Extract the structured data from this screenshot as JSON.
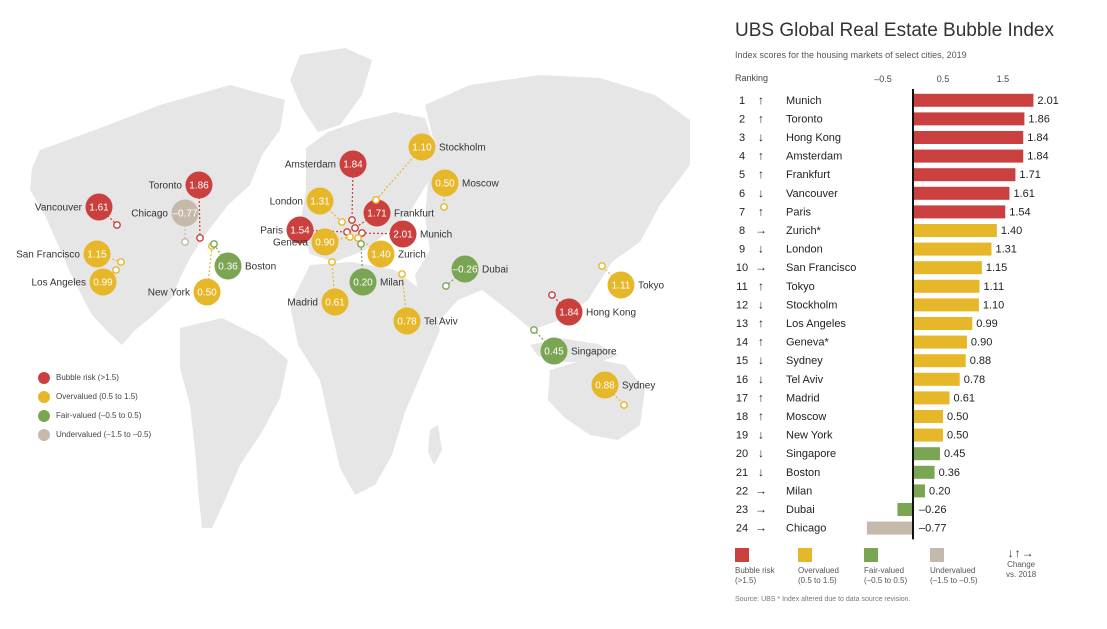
{
  "title": "UBS Global Real Estate Bubble Index",
  "subtitle": "Index scores for the housing markets of select cities, 2019",
  "ranking_label": "Ranking",
  "colors": {
    "bubble": "#c9403e",
    "over": "#e7b72a",
    "fair": "#7aa653",
    "under": "#c4b9ab",
    "land": "#e6e6e6"
  },
  "chart_data": {
    "type": "bar",
    "orientation": "horizontal",
    "xlim": [
      -1.1,
      2.05
    ],
    "x_ticks": [
      "–0.5",
      "0.5",
      "1.5"
    ],
    "x_tick_values": [
      -0.5,
      0.5,
      1.5
    ],
    "rows": [
      {
        "rank": "1",
        "arrow": "↑",
        "city": "Munich",
        "value": 2.01,
        "label": "2.01",
        "category": "bubble"
      },
      {
        "rank": "2",
        "arrow": "↑",
        "city": "Toronto",
        "value": 1.86,
        "label": "1.86",
        "category": "bubble"
      },
      {
        "rank": "3",
        "arrow": "↓",
        "city": "Hong Kong",
        "value": 1.84,
        "label": "1.84",
        "category": "bubble"
      },
      {
        "rank": "4",
        "arrow": "↑",
        "city": "Amsterdam",
        "value": 1.84,
        "label": "1.84",
        "category": "bubble"
      },
      {
        "rank": "5",
        "arrow": "↑",
        "city": "Frankfurt",
        "value": 1.71,
        "label": "1.71",
        "category": "bubble"
      },
      {
        "rank": "6",
        "arrow": "↓",
        "city": "Vancouver",
        "value": 1.61,
        "label": "1.61",
        "category": "bubble"
      },
      {
        "rank": "7",
        "arrow": "↑",
        "city": "Paris",
        "value": 1.54,
        "label": "1.54",
        "category": "bubble"
      },
      {
        "rank": "8",
        "arrow": "→",
        "city": "Zurich*",
        "value": 1.4,
        "label": "1.40",
        "category": "over"
      },
      {
        "rank": "9",
        "arrow": "↓",
        "city": "London",
        "value": 1.31,
        "label": "1.31",
        "category": "over"
      },
      {
        "rank": "10",
        "arrow": "→",
        "city": "San Francisco",
        "value": 1.15,
        "label": "1.15",
        "category": "over"
      },
      {
        "rank": "11",
        "arrow": "↑",
        "city": "Tokyo",
        "value": 1.11,
        "label": "1.11",
        "category": "over"
      },
      {
        "rank": "12",
        "arrow": "↓",
        "city": "Stockholm",
        "value": 1.1,
        "label": "1.10",
        "category": "over"
      },
      {
        "rank": "13",
        "arrow": "↑",
        "city": "Los Angeles",
        "value": 0.99,
        "label": "0.99",
        "category": "over"
      },
      {
        "rank": "14",
        "arrow": "↑",
        "city": "Geneva*",
        "value": 0.9,
        "label": "0.90",
        "category": "over"
      },
      {
        "rank": "15",
        "arrow": "↓",
        "city": "Sydney",
        "value": 0.88,
        "label": "0.88",
        "category": "over"
      },
      {
        "rank": "16",
        "arrow": "↓",
        "city": "Tel Aviv",
        "value": 0.78,
        "label": "0.78",
        "category": "over"
      },
      {
        "rank": "17",
        "arrow": "↑",
        "city": "Madrid",
        "value": 0.61,
        "label": "0.61",
        "category": "over"
      },
      {
        "rank": "18",
        "arrow": "↑",
        "city": "Moscow",
        "value": 0.5,
        "label": "0.50",
        "category": "over"
      },
      {
        "rank": "19",
        "arrow": "↓",
        "city": "New York",
        "value": 0.5,
        "label": "0.50",
        "category": "over"
      },
      {
        "rank": "20",
        "arrow": "↓",
        "city": "Singapore",
        "value": 0.45,
        "label": "0.45",
        "category": "fair"
      },
      {
        "rank": "21",
        "arrow": "↓",
        "city": "Boston",
        "value": 0.36,
        "label": "0.36",
        "category": "fair"
      },
      {
        "rank": "22",
        "arrow": "→",
        "city": "Milan",
        "value": 0.2,
        "label": "0.20",
        "category": "fair"
      },
      {
        "rank": "23",
        "arrow": "→",
        "city": "Dubai",
        "value": -0.26,
        "label": "–0.26",
        "category": "fair"
      },
      {
        "rank": "24",
        "arrow": "→",
        "city": "Chicago",
        "value": -0.77,
        "label": "–0.77",
        "category": "under"
      }
    ]
  },
  "map_cities": [
    {
      "city": "Vancouver",
      "value": "1.61",
      "category": "bubble"
    },
    {
      "city": "Toronto",
      "value": "1.86",
      "category": "bubble"
    },
    {
      "city": "Chicago",
      "value": "–0.77",
      "category": "under"
    },
    {
      "city": "San Francisco",
      "value": "1.15",
      "category": "over"
    },
    {
      "city": "Los Angeles",
      "value": "0.99",
      "category": "over"
    },
    {
      "city": "New York",
      "value": "0.50",
      "category": "over"
    },
    {
      "city": "Boston",
      "value": "0.36",
      "category": "fair"
    },
    {
      "city": "Amsterdam",
      "value": "1.84",
      "category": "bubble"
    },
    {
      "city": "London",
      "value": "1.31",
      "category": "over"
    },
    {
      "city": "Paris",
      "value": "1.54",
      "category": "bubble"
    },
    {
      "city": "Geneva",
      "value": "0.90",
      "category": "over"
    },
    {
      "city": "Frankfurt",
      "value": "1.71",
      "category": "bubble"
    },
    {
      "city": "Munich",
      "value": "2.01",
      "category": "bubble"
    },
    {
      "city": "Zurich",
      "value": "1.40",
      "category": "over"
    },
    {
      "city": "Milan",
      "value": "0.20",
      "category": "fair"
    },
    {
      "city": "Madrid",
      "value": "0.61",
      "category": "over"
    },
    {
      "city": "Stockholm",
      "value": "1.10",
      "category": "over"
    },
    {
      "city": "Moscow",
      "value": "0.50",
      "category": "over"
    },
    {
      "city": "Dubai",
      "value": "–0.26",
      "category": "fair"
    },
    {
      "city": "Tel Aviv",
      "value": "0.78",
      "category": "over"
    },
    {
      "city": "Tokyo",
      "value": "1.11",
      "category": "over"
    },
    {
      "city": "Hong Kong",
      "value": "1.84",
      "category": "bubble"
    },
    {
      "city": "Singapore",
      "value": "0.45",
      "category": "fair"
    },
    {
      "city": "Sydney",
      "value": "0.88",
      "category": "over"
    }
  ],
  "map_legend": [
    {
      "category": "bubble",
      "label": "Bubble risk (>1.5)"
    },
    {
      "category": "over",
      "label": "Overvalued (0.5 to 1.5)"
    },
    {
      "category": "fair",
      "label": "Fair-valued (–0.5 to 0.5)"
    },
    {
      "category": "under",
      "label": "Undervalued (–1.5 to –0.5)"
    }
  ],
  "bar_legend": [
    {
      "category": "bubble",
      "line1": "Bubble risk",
      "line2": "(>1.5)"
    },
    {
      "category": "over",
      "line1": "Overvalued",
      "line2": "(0.5 to 1.5)"
    },
    {
      "category": "fair",
      "line1": "Fair-valued",
      "line2": "(–0.5 to 0.5)"
    },
    {
      "category": "under",
      "line1": "Undervalued",
      "line2": "(–1.5 to –0.5)"
    }
  ],
  "change": {
    "arrows": "↓↑→",
    "line1": "Change",
    "line2": "vs. 2018"
  },
  "source": "Source: UBS  * Index altered due to data source revision."
}
